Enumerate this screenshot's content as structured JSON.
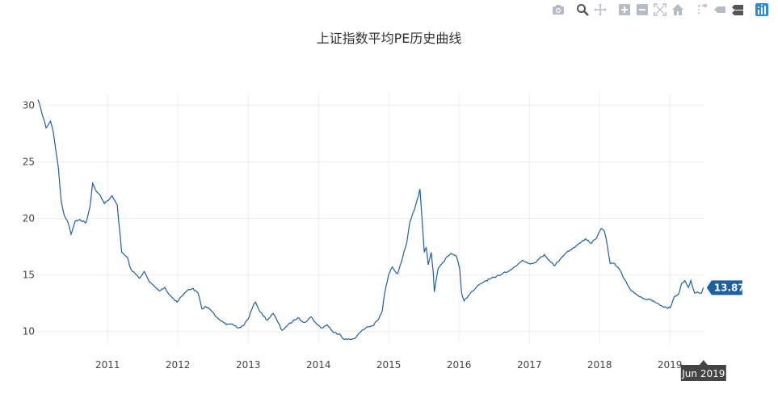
{
  "modebar": {
    "buttons": [
      "camera-icon",
      "zoom-icon",
      "pan-icon",
      "zoom-in-icon",
      "zoom-out-icon",
      "autoscale-icon",
      "reset-axes-icon",
      "spike-lines-icon",
      "hover-closest-icon",
      "hover-compare-icon",
      "plotly-logo-icon"
    ]
  },
  "colors": {
    "line": "#1f5fa0",
    "grid": "#eeeeee",
    "hover_bg": "#1f5fa0",
    "hover_x_bg": "#444444"
  },
  "chart_data": {
    "type": "line",
    "title": "上证指数平均PE历史曲线",
    "xlabel": "",
    "ylabel": "",
    "xlim": [
      "2010-01-04",
      "2019-06-30"
    ],
    "ylim": [
      8.9,
      31.1
    ],
    "y_ticks": [
      10,
      15,
      20,
      25,
      30
    ],
    "x_ticks": [
      {
        "date": "2011-01-01",
        "label": "2011"
      },
      {
        "date": "2012-01-01",
        "label": "2012"
      },
      {
        "date": "2013-01-01",
        "label": "2013"
      },
      {
        "date": "2014-01-01",
        "label": "2014"
      },
      {
        "date": "2015-01-01",
        "label": "2015"
      },
      {
        "date": "2016-01-01",
        "label": "2016"
      },
      {
        "date": "2017-01-01",
        "label": "2017"
      },
      {
        "date": "2018-01-01",
        "label": "2018"
      },
      {
        "date": "2019-01-01",
        "label": "2019"
      }
    ],
    "grid": true,
    "series": [
      {
        "x": [
          "2010-01-04",
          "2010-01-20",
          "2010-02-15",
          "2010-03-10",
          "2010-03-25",
          "2010-04-20",
          "2010-05-05",
          "2010-05-20",
          "2010-06-10",
          "2010-06-25",
          "2010-07-15",
          "2010-08-10",
          "2010-09-10",
          "2010-10-01",
          "2010-10-15",
          "2010-11-08",
          "2010-11-25",
          "2010-12-15",
          "2011-01-05",
          "2011-01-25",
          "2011-02-20",
          "2011-03-15",
          "2011-04-15",
          "2011-04-25",
          "2011-05-10",
          "2011-05-25",
          "2011-06-15",
          "2011-07-10",
          "2011-08-05",
          "2011-09-01",
          "2011-09-25",
          "2011-10-25",
          "2011-11-15",
          "2011-12-10",
          "2011-12-28",
          "2012-01-20",
          "2012-02-25",
          "2012-03-15",
          "2012-04-15",
          "2012-05-05",
          "2012-05-25",
          "2012-06-20",
          "2012-07-20",
          "2012-08-20",
          "2012-09-10",
          "2012-10-15",
          "2012-11-10",
          "2012-12-05",
          "2012-12-31",
          "2013-01-25",
          "2013-02-08",
          "2013-03-05",
          "2013-04-10",
          "2013-05-10",
          "2013-05-30",
          "2013-06-25",
          "2013-07-15",
          "2013-08-20",
          "2013-09-15",
          "2013-10-20",
          "2013-11-25",
          "2013-12-25",
          "2014-01-20",
          "2014-02-15",
          "2014-03-20",
          "2014-04-20",
          "2014-05-15",
          "2014-06-20",
          "2014-07-15",
          "2014-08-10",
          "2014-09-10",
          "2014-10-10",
          "2014-11-10",
          "2014-11-28",
          "2014-12-10",
          "2014-12-31",
          "2015-01-20",
          "2015-02-15",
          "2015-03-15",
          "2015-04-05",
          "2015-04-20",
          "2015-05-05",
          "2015-05-20",
          "2015-06-05",
          "2015-06-12",
          "2015-06-25",
          "2015-07-05",
          "2015-07-15",
          "2015-07-25",
          "2015-08-10",
          "2015-08-20",
          "2015-08-26",
          "2015-09-15",
          "2015-10-10",
          "2015-10-30",
          "2015-11-20",
          "2015-12-20",
          "2016-01-05",
          "2016-01-15",
          "2016-01-28",
          "2016-02-20",
          "2016-03-15",
          "2016-04-20",
          "2016-05-20",
          "2016-07-10",
          "2016-08-20",
          "2016-09-20",
          "2016-10-25",
          "2016-11-25",
          "2016-12-20",
          "2017-01-20",
          "2017-02-20",
          "2017-03-20",
          "2017-04-15",
          "2017-05-10",
          "2017-06-20",
          "2017-07-20",
          "2017-08-20",
          "2017-09-20",
          "2017-10-20",
          "2017-11-20",
          "2017-12-20",
          "2018-01-10",
          "2018-01-25",
          "2018-02-08",
          "2018-02-25",
          "2018-03-20",
          "2018-04-10",
          "2018-05-10",
          "2018-06-15",
          "2018-06-30",
          "2018-07-20",
          "2018-08-20",
          "2018-09-20",
          "2018-10-15",
          "2018-11-15",
          "2018-12-15",
          "2019-01-03",
          "2019-01-25",
          "2019-02-15",
          "2019-03-05",
          "2019-03-20",
          "2019-04-08",
          "2019-04-20",
          "2019-05-10",
          "2019-05-25",
          "2019-06-15",
          "2019-06-25"
        ],
        "y": [
          30.5,
          29.6,
          28.0,
          28.6,
          27.6,
          24.5,
          21.5,
          20.3,
          19.6,
          18.6,
          19.7,
          19.9,
          19.6,
          21.0,
          23.1,
          22.3,
          22.0,
          21.3,
          21.6,
          22.0,
          21.2,
          17.0,
          16.5,
          15.8,
          15.3,
          15.1,
          14.7,
          15.3,
          14.4,
          14.0,
          13.6,
          13.9,
          13.3,
          12.9,
          12.6,
          13.1,
          13.7,
          13.8,
          13.4,
          12.0,
          12.2,
          11.9,
          11.3,
          10.9,
          10.6,
          10.6,
          10.3,
          10.5,
          11.1,
          12.2,
          12.6,
          11.7,
          11.0,
          11.6,
          11.0,
          10.1,
          10.4,
          10.9,
          11.2,
          10.8,
          11.3,
          10.6,
          10.3,
          10.6,
          9.9,
          9.8,
          9.3,
          9.3,
          9.5,
          10.0,
          10.4,
          10.5,
          11.1,
          11.8,
          13.3,
          15.0,
          15.7,
          15.1,
          16.6,
          17.9,
          19.6,
          20.4,
          21.1,
          22.0,
          22.6,
          19.4,
          17.0,
          17.4,
          15.9,
          17.0,
          15.3,
          13.5,
          15.6,
          16.1,
          16.6,
          16.9,
          16.6,
          15.5,
          13.4,
          12.7,
          13.2,
          13.6,
          14.2,
          14.5,
          14.8,
          15.2,
          15.4,
          15.8,
          16.3,
          16.1,
          16.0,
          16.4,
          16.8,
          16.3,
          15.8,
          16.6,
          17.1,
          17.4,
          17.8,
          18.2,
          17.8,
          18.4,
          19.1,
          18.9,
          17.8,
          16.0,
          16.0,
          15.6,
          14.6,
          13.6,
          13.4,
          13.2,
          12.9,
          12.8,
          12.6,
          12.3,
          12.1,
          12.1,
          13.1,
          13.3,
          14.3,
          14.5,
          13.9,
          14.5,
          13.4,
          13.5,
          13.4,
          13.87
        ]
      }
    ],
    "hover": {
      "value_label": "13.87",
      "x_label": "Jun 2019"
    }
  }
}
